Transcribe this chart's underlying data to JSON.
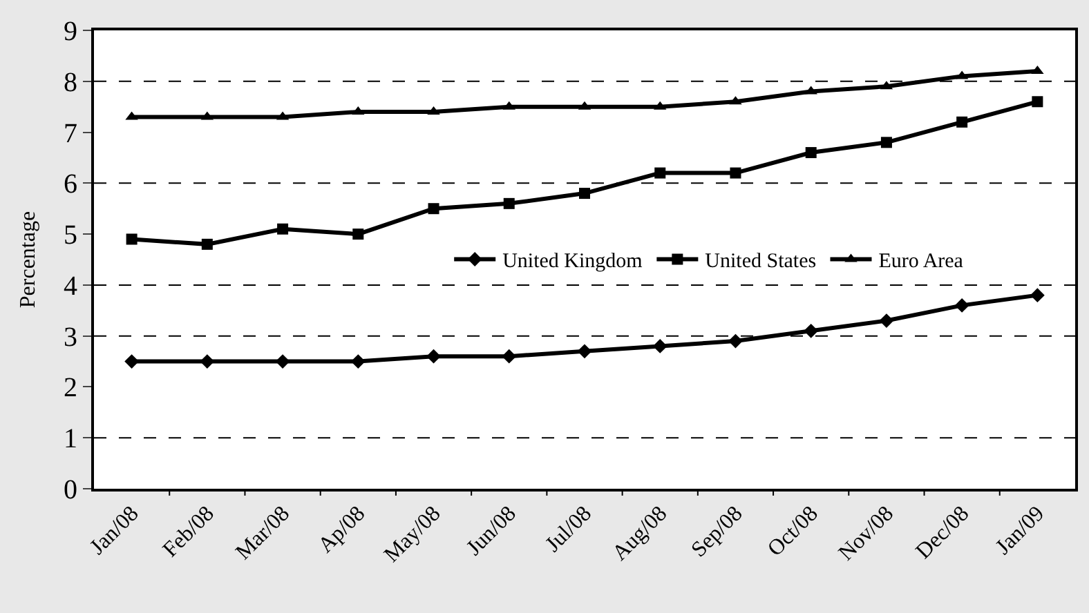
{
  "chart_data": {
    "type": "line",
    "ylabel": "Percentage",
    "categories": [
      "Jan/08",
      "Feb/08",
      "Mar/08",
      "Ap/08",
      "May/08",
      "Jun/08",
      "Jul/08",
      "Aug/08",
      "Sep/08",
      "Oct/08",
      "Nov/08",
      "Dec/08",
      "Jan/09"
    ],
    "series": [
      {
        "name": "United Kingdom",
        "color": "#000000",
        "marker": "diamond",
        "values": [
          2.5,
          2.5,
          2.5,
          2.5,
          2.6,
          2.6,
          2.7,
          2.8,
          2.9,
          3.1,
          3.3,
          3.6,
          3.8
        ]
      },
      {
        "name": "United States",
        "color": "#000000",
        "marker": "square",
        "values": [
          4.9,
          4.8,
          5.1,
          5.0,
          5.5,
          5.6,
          5.8,
          6.2,
          6.2,
          6.6,
          6.8,
          7.2,
          7.6
        ]
      },
      {
        "name": "Euro Area",
        "color": "#000000",
        "marker": "triangle",
        "values": [
          7.3,
          7.3,
          7.3,
          7.4,
          7.4,
          7.5,
          7.5,
          7.5,
          7.6,
          7.8,
          7.9,
          8.1,
          8.2
        ]
      }
    ],
    "ylim": [
      0,
      9
    ],
    "yticks": [
      0,
      1,
      2,
      3,
      4,
      5,
      6,
      7,
      8,
      9
    ],
    "grid": false,
    "legend": "right",
    "line_style": "solid",
    "ref_lines": [
      {
        "axis": "y",
        "value": 1,
        "line_style": "dashed"
      },
      {
        "axis": "y",
        "value": 3,
        "line_style": "dashed"
      },
      {
        "axis": "y",
        "value": 4,
        "line_style": "dashed"
      },
      {
        "axis": "y",
        "value": 6,
        "line_style": "dashed"
      },
      {
        "axis": "y",
        "value": 8,
        "line_style": "dashed"
      }
    ]
  }
}
